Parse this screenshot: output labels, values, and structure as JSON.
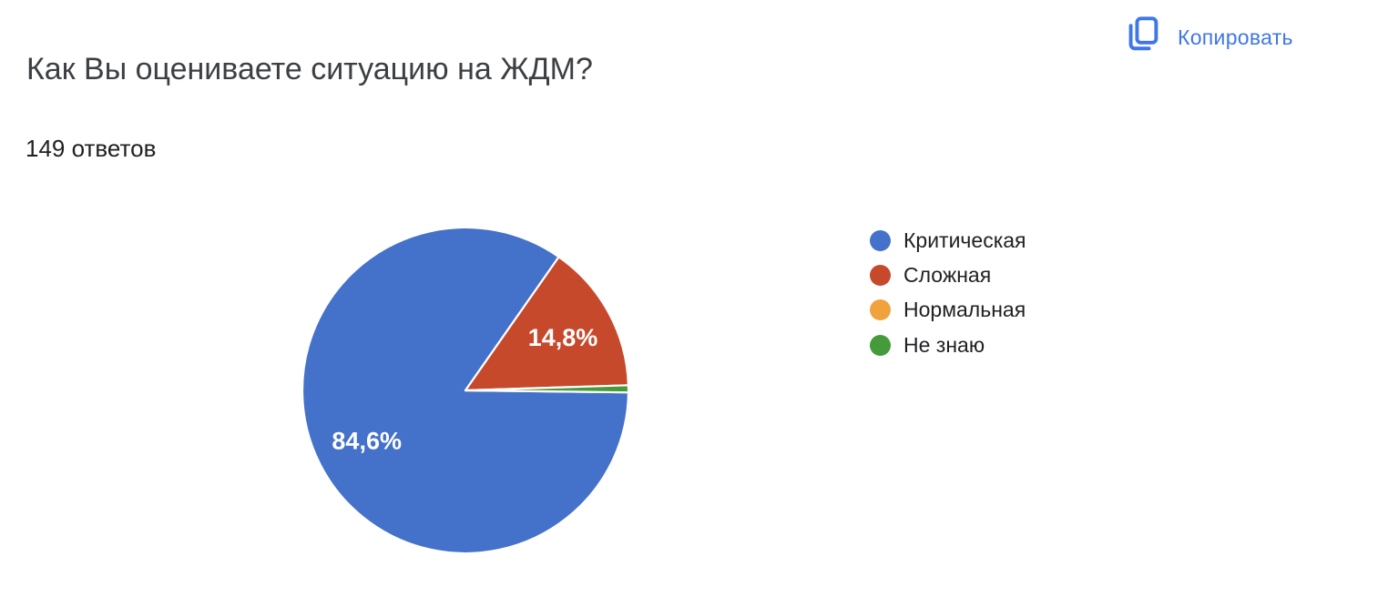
{
  "header": {
    "title": "Как Вы оцениваете ситуацию на ЖДМ?",
    "responses": "149 ответов",
    "responses_count": 149
  },
  "copy_button": {
    "label": "Копировать",
    "icon": "content-copy-icon",
    "color": "#3E77E8"
  },
  "chart_data": {
    "type": "pie",
    "title": "Как Вы оцениваете ситуацию на ЖДМ?",
    "categories": [
      "Критическая",
      "Сложная",
      "Нормальная",
      "Не знаю"
    ],
    "values": [
      84.6,
      14.8,
      0,
      0.7
    ],
    "slice_labels": [
      "84,6%",
      "14,8%",
      "",
      ""
    ],
    "colors": [
      "#4471C9",
      "#C7492B",
      "#F0A23C",
      "#459A3C"
    ],
    "slice_border_color": "#ffffff",
    "start_angle": -0.7,
    "legend_position": "right",
    "label_radius_ratio": 0.68
  }
}
